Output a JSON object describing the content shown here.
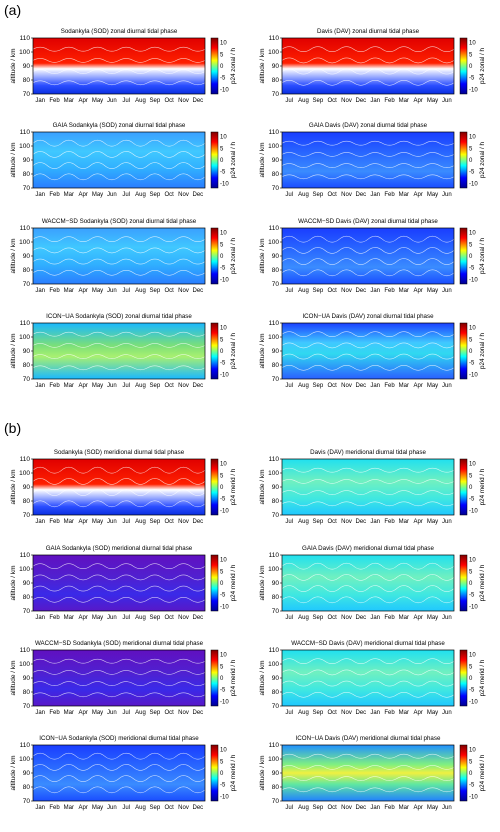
{
  "section_labels": [
    "(a)",
    "(b)"
  ],
  "colorbar": {
    "ticks": [
      10,
      5,
      0,
      -5,
      -10
    ],
    "colors": [
      "#00008f",
      "#0000ff",
      "#00ffff",
      "#ffff00",
      "#ff0000",
      "#800000"
    ]
  },
  "axes": {
    "yticks": [
      70,
      80,
      90,
      100,
      110
    ],
    "ylabel": "altitude / km",
    "months_sod": [
      "Jan",
      "Feb",
      "Mar",
      "Apr",
      "May",
      "Jun",
      "Jul",
      "Aug",
      "Sep",
      "Oct",
      "Nov",
      "Dec"
    ],
    "months_dav": [
      "Jul",
      "Aug",
      "Sep",
      "Oct",
      "Nov",
      "Dec",
      "Jan",
      "Feb",
      "Mar",
      "Apr",
      "May",
      "Jun"
    ]
  },
  "chart_data": [
    {
      "type": "heatmap",
      "title": "Sodankyla (SOD) zonal diurnal tidal phase",
      "ylabel": "altitude / km",
      "cbar_label": "p24 zonal / h",
      "ylim": [
        70,
        110
      ],
      "x": "sod",
      "style": "red_top"
    },
    {
      "type": "heatmap",
      "title": "Davis (DAV) zonal diurnal tidal phase",
      "ylabel": "altitude / km",
      "cbar_label": "p24 zonal / h",
      "ylim": [
        70,
        110
      ],
      "x": "dav",
      "style": "red_top"
    },
    {
      "type": "heatmap",
      "title": "GAIA Sodankyla (SOD) zonal diurnal tidal phase",
      "ylabel": "altitude / km",
      "cbar_label": "p24 zonal / h",
      "ylim": [
        70,
        110
      ],
      "x": "sod",
      "style": "cyan_blue"
    },
    {
      "type": "heatmap",
      "title": "GAIA Davis (DAV) zonal diurnal tidal phase",
      "ylabel": "altitude / km",
      "cbar_label": "p24 zonal / h",
      "ylim": [
        70,
        110
      ],
      "x": "dav",
      "style": "blue"
    },
    {
      "type": "heatmap",
      "title": "WACCM−SD Sodankyla (SOD) zonal diurnal tidal phase",
      "ylabel": "altitude / km",
      "cbar_label": "p24 zonal / h",
      "ylim": [
        70,
        110
      ],
      "x": "sod",
      "style": "cyan_blue"
    },
    {
      "type": "heatmap",
      "title": "WACCM−SD Davis (DAV) zonal diurnal tidal phase",
      "ylabel": "altitude / km",
      "cbar_label": "p24 zonal / h",
      "ylim": [
        70,
        110
      ],
      "x": "dav",
      "style": "blue"
    },
    {
      "type": "heatmap",
      "title": "ICON−UA Sodankyla (SOD) zonal diurnal tidal phase",
      "ylabel": "altitude / km",
      "cbar_label": "p24 zonal / h",
      "ylim": [
        70,
        110
      ],
      "x": "sod",
      "style": "green"
    },
    {
      "type": "heatmap",
      "title": "ICON−UA Davis (DAV) zonal diurnal tidal phase",
      "ylabel": "altitude / km",
      "cbar_label": "p24 zonal / h",
      "ylim": [
        70,
        110
      ],
      "x": "dav",
      "style": "blue_cyan"
    },
    {
      "type": "heatmap",
      "title": "Sodankyla (SOD) meridional diurnal tidal phase",
      "ylabel": "altitude / km",
      "cbar_label": "p24 merid / h",
      "ylim": [
        70,
        110
      ],
      "x": "sod",
      "style": "red_top"
    },
    {
      "type": "heatmap",
      "title": "Davis (DAV) meridional diurnal tidal phase",
      "ylabel": "altitude / km",
      "cbar_label": "p24 merid / h",
      "ylim": [
        70,
        110
      ],
      "x": "dav",
      "style": "cyan_light"
    },
    {
      "type": "heatmap",
      "title": "GAIA Sodankyla (SOD) meridional diurnal tidal phase",
      "ylabel": "altitude / km",
      "cbar_label": "p24 merid / h",
      "ylim": [
        70,
        110
      ],
      "x": "sod",
      "style": "purple"
    },
    {
      "type": "heatmap",
      "title": "GAIA Davis (DAV) meridional diurnal tidal phase",
      "ylabel": "altitude / km",
      "cbar_label": "p24 merid / h",
      "ylim": [
        70,
        110
      ],
      "x": "dav",
      "style": "cyan_light"
    },
    {
      "type": "heatmap",
      "title": "WACCM−SD Sodankyla (SOD) meridional diurnal tidal phase",
      "ylabel": "altitude / km",
      "cbar_label": "p24 merid / h",
      "ylim": [
        70,
        110
      ],
      "x": "sod",
      "style": "purple"
    },
    {
      "type": "heatmap",
      "title": "WACCM−SD Davis (DAV) meridional diurnal tidal phase",
      "ylabel": "altitude / km",
      "cbar_label": "p24 merid / h",
      "ylim": [
        70,
        110
      ],
      "x": "dav",
      "style": "cyan_light"
    },
    {
      "type": "heatmap",
      "title": "ICON−UA Sodankyla (SOD) meridional diurnal tidal phase",
      "ylabel": "altitude / km",
      "cbar_label": "p24 merid / h",
      "ylim": [
        70,
        110
      ],
      "x": "sod",
      "style": "blue"
    },
    {
      "type": "heatmap",
      "title": "ICON−UA Davis (DAV) meridional diurnal tidal phase",
      "ylabel": "altitude / km",
      "cbar_label": "p24 merid / h",
      "ylim": [
        70,
        110
      ],
      "x": "dav",
      "style": "green_center"
    }
  ]
}
